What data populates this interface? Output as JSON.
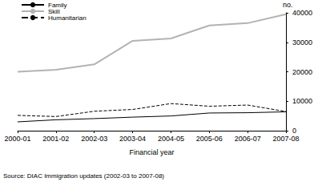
{
  "chart_data": {
    "type": "line",
    "xlabel": "Financial year",
    "ylabel": "no.",
    "annotations": [
      "Source: DIAC Immigration updates (2002-03 to 2007-08)"
    ],
    "categories": [
      "2000-01",
      "2001-02",
      "2002-03",
      "2003-04",
      "2004-05",
      "2005-06",
      "2006-07",
      "2007-08"
    ],
    "series": [
      {
        "name": "Family",
        "color": "#000000",
        "line_style": "solid",
        "values": [
          3000,
          3700,
          4100,
          4600,
          5000,
          6000,
          6100,
          6400
        ]
      },
      {
        "name": "Skill",
        "color": "#b3b3b3",
        "line_style": "solid",
        "values": [
          20000,
          20700,
          22500,
          30500,
          31300,
          35700,
          36500,
          39500
        ]
      },
      {
        "name": "Humanitarian",
        "color": "#000000",
        "line_style": "dashed",
        "values": [
          5200,
          4800,
          6600,
          7200,
          9200,
          8300,
          8700,
          6500
        ]
      }
    ],
    "ylim": [
      0,
      40000
    ],
    "yticks": [
      0,
      10000,
      20000,
      30000,
      40000
    ],
    "grid": false,
    "legend": "top-left"
  }
}
